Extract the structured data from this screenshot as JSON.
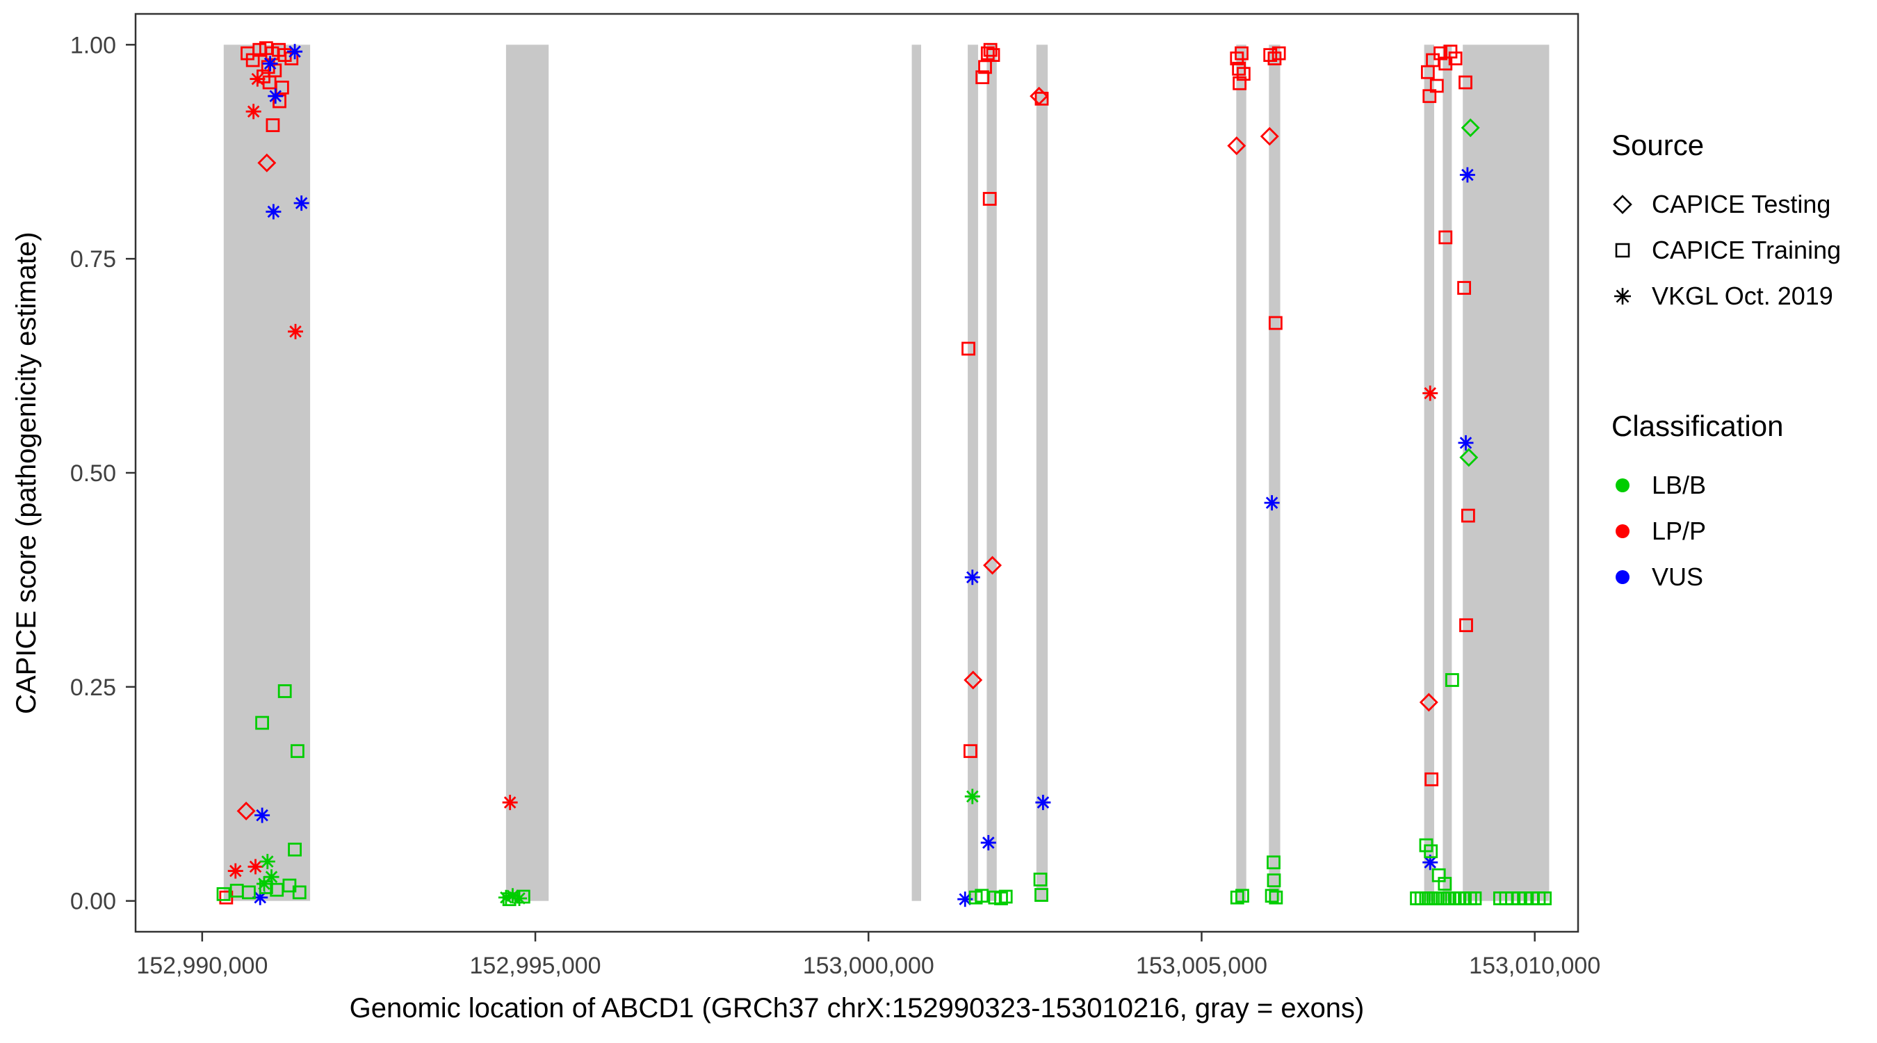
{
  "legend": {
    "source": {
      "title": "Source",
      "items": [
        {
          "label": "CAPICE Testing",
          "shape": "diamond"
        },
        {
          "label": "CAPICE Training",
          "shape": "square"
        },
        {
          "label": "VKGL Oct. 2019",
          "shape": "asterisk"
        }
      ]
    },
    "classification": {
      "title": "Classification",
      "items": [
        {
          "label": "LB/B",
          "color": "#00CD00"
        },
        {
          "label": "LP/P",
          "color": "#FF0000"
        },
        {
          "label": "VUS",
          "color": "#0000FF"
        }
      ]
    }
  },
  "chart_data": {
    "type": "scatter",
    "title": "",
    "xlabel": "Genomic location of ABCD1 (GRCh37 chrX:152990323-153010216, gray = exons)",
    "ylabel": "CAPICE score (pathogenicity estimate)",
    "legend_position": "right",
    "grid": false,
    "exon_color": "#C8C8C8",
    "x_axis": {
      "range": [
        152989000,
        153010650
      ],
      "ticks": [
        {
          "value": 152990000,
          "label": "152,990,000"
        },
        {
          "value": 152995000,
          "label": "152,995,000"
        },
        {
          "value": 153000000,
          "label": "153,000,000"
        },
        {
          "value": 153005000,
          "label": "153,005,000"
        },
        {
          "value": 153010000,
          "label": "153,010,000"
        }
      ]
    },
    "y_axis": {
      "range": [
        0,
        1
      ],
      "ticks": [
        {
          "value": 0,
          "label": "0.00"
        },
        {
          "value": 0.25,
          "label": "0.25"
        },
        {
          "value": 0.5,
          "label": "0.50"
        },
        {
          "value": 0.75,
          "label": "0.75"
        },
        {
          "value": 1,
          "label": "1.00"
        }
      ]
    },
    "exons": [
      [
        152990323,
        152991620
      ],
      [
        152994560,
        152995200
      ],
      [
        153000650,
        153000790
      ],
      [
        153001490,
        153001645
      ],
      [
        153001775,
        153001925
      ],
      [
        153002520,
        153002690
      ],
      [
        153005520,
        153005670
      ],
      [
        153006010,
        153006180
      ],
      [
        153008340,
        153008490
      ],
      [
        153008620,
        153008755
      ],
      [
        153008920,
        153010216
      ]
    ],
    "source_codes": {
      "T": "CAPICE Testing",
      "R": "CAPICE Training",
      "V": "VKGL Oct. 2019"
    },
    "class_codes": {
      "B": "LB/B",
      "P": "LP/P",
      "U": "VUS"
    },
    "colors": {
      "LB/B": "#00CD00",
      "LP/P": "#FF0000",
      "VUS": "#0000FF"
    },
    "shapes": {
      "CAPICE Testing": "diamond",
      "CAPICE Training": "square",
      "VKGL Oct. 2019": "asterisk"
    },
    "points": [
      [
        152990680,
        0.99,
        "R",
        "P"
      ],
      [
        152990760,
        0.982,
        "R",
        "P"
      ],
      [
        152990860,
        0.994,
        "R",
        "P"
      ],
      [
        152990960,
        0.996,
        "R",
        "P"
      ],
      [
        152991050,
        0.99,
        "R",
        "P"
      ],
      [
        152991150,
        0.994,
        "R",
        "P"
      ],
      [
        152991240,
        0.988,
        "R",
        "P"
      ],
      [
        152991340,
        0.984,
        "R",
        "P"
      ],
      [
        152990990,
        0.974,
        "R",
        "P"
      ],
      [
        152991090,
        0.97,
        "R",
        "P"
      ],
      [
        152990920,
        0.963,
        "R",
        "P"
      ],
      [
        152991010,
        0.956,
        "R",
        "P"
      ],
      [
        152991200,
        0.95,
        "R",
        "P"
      ],
      [
        152991160,
        0.934,
        "R",
        "P"
      ],
      [
        152991060,
        0.906,
        "R",
        "P"
      ],
      [
        152990360,
        0.004,
        "R",
        "P"
      ],
      [
        152990830,
        0.96,
        "V",
        "P"
      ],
      [
        152990770,
        0.922,
        "V",
        "P"
      ],
      [
        152991400,
        0.665,
        "V",
        "P"
      ],
      [
        152990500,
        0.035,
        "V",
        "P"
      ],
      [
        152990800,
        0.04,
        "V",
        "P"
      ],
      [
        152990970,
        0.862,
        "T",
        "P"
      ],
      [
        152990660,
        0.105,
        "T",
        "P"
      ],
      [
        152991020,
        0.978,
        "V",
        "U"
      ],
      [
        152991390,
        0.992,
        "V",
        "U"
      ],
      [
        152991100,
        0.94,
        "V",
        "U"
      ],
      [
        152991070,
        0.805,
        "V",
        "U"
      ],
      [
        152991490,
        0.815,
        "V",
        "U"
      ],
      [
        152990900,
        0.1,
        "V",
        "U"
      ],
      [
        152990870,
        0.004,
        "V",
        "U"
      ],
      [
        152991240,
        0.245,
        "R",
        "B"
      ],
      [
        152990900,
        0.208,
        "R",
        "B"
      ],
      [
        152991430,
        0.175,
        "R",
        "B"
      ],
      [
        152991390,
        0.06,
        "R",
        "B"
      ],
      [
        152990320,
        0.008,
        "R",
        "B"
      ],
      [
        152990520,
        0.012,
        "R",
        "B"
      ],
      [
        152990700,
        0.01,
        "R",
        "B"
      ],
      [
        152990960,
        0.016,
        "R",
        "B"
      ],
      [
        152991120,
        0.013,
        "R",
        "B"
      ],
      [
        152991310,
        0.018,
        "R",
        "B"
      ],
      [
        152991460,
        0.01,
        "R",
        "B"
      ],
      [
        152990980,
        0.046,
        "V",
        "B"
      ],
      [
        152991040,
        0.028,
        "V",
        "B"
      ],
      [
        152990930,
        0.02,
        "V",
        "B"
      ],
      [
        152994620,
        0.115,
        "V",
        "P"
      ],
      [
        152994560,
        0.004,
        "V",
        "B"
      ],
      [
        152994660,
        0.006,
        "V",
        "B"
      ],
      [
        152994760,
        0.003,
        "V",
        "B"
      ],
      [
        152994610,
        0.002,
        "R",
        "B"
      ],
      [
        152994820,
        0.005,
        "R",
        "B"
      ],
      [
        153001790,
        0.99,
        "R",
        "P"
      ],
      [
        153001830,
        0.994,
        "R",
        "P"
      ],
      [
        153001870,
        0.988,
        "R",
        "P"
      ],
      [
        153001750,
        0.974,
        "R",
        "P"
      ],
      [
        153001710,
        0.962,
        "R",
        "P"
      ],
      [
        153001820,
        0.82,
        "R",
        "P"
      ],
      [
        153001500,
        0.645,
        "R",
        "P"
      ],
      [
        153001530,
        0.175,
        "R",
        "P"
      ],
      [
        153001860,
        0.392,
        "T",
        "P"
      ],
      [
        153001570,
        0.258,
        "T",
        "P"
      ],
      [
        153001560,
        0.378,
        "V",
        "U"
      ],
      [
        153001800,
        0.068,
        "V",
        "U"
      ],
      [
        153001450,
        0.002,
        "V",
        "U"
      ],
      [
        153001560,
        0.122,
        "V",
        "B"
      ],
      [
        153001610,
        0.004,
        "R",
        "B"
      ],
      [
        153001700,
        0.006,
        "R",
        "B"
      ],
      [
        153001900,
        0.004,
        "R",
        "B"
      ],
      [
        153001990,
        0.003,
        "R",
        "B"
      ],
      [
        153002060,
        0.005,
        "R",
        "B"
      ],
      [
        153002560,
        0.94,
        "T",
        "P"
      ],
      [
        153002600,
        0.937,
        "R",
        "P"
      ],
      [
        153002620,
        0.115,
        "V",
        "U"
      ],
      [
        153002580,
        0.025,
        "R",
        "B"
      ],
      [
        153002595,
        0.007,
        "R",
        "B"
      ],
      [
        153005530,
        0.984,
        "R",
        "P"
      ],
      [
        153005560,
        0.972,
        "R",
        "P"
      ],
      [
        153005600,
        0.99,
        "R",
        "P"
      ],
      [
        153005630,
        0.966,
        "R",
        "P"
      ],
      [
        153005570,
        0.955,
        "R",
        "P"
      ],
      [
        153005525,
        0.882,
        "T",
        "P"
      ],
      [
        153005535,
        0.004,
        "R",
        "B"
      ],
      [
        153005610,
        0.006,
        "R",
        "B"
      ],
      [
        153006030,
        0.988,
        "R",
        "P"
      ],
      [
        153006095,
        0.984,
        "R",
        "P"
      ],
      [
        153006160,
        0.99,
        "R",
        "P"
      ],
      [
        153006110,
        0.675,
        "R",
        "P"
      ],
      [
        153006020,
        0.893,
        "T",
        "P"
      ],
      [
        153006055,
        0.465,
        "V",
        "U"
      ],
      [
        153006080,
        0.045,
        "R",
        "B"
      ],
      [
        153006085,
        0.024,
        "R",
        "B"
      ],
      [
        153006055,
        0.006,
        "R",
        "B"
      ],
      [
        153006115,
        0.004,
        "R",
        "B"
      ],
      [
        153008395,
        0.968,
        "R",
        "P"
      ],
      [
        153008470,
        0.982,
        "R",
        "P"
      ],
      [
        153008530,
        0.952,
        "R",
        "P"
      ],
      [
        153008585,
        0.99,
        "R",
        "P"
      ],
      [
        153008660,
        0.978,
        "R",
        "P"
      ],
      [
        153008735,
        0.992,
        "R",
        "P"
      ],
      [
        153008420,
        0.94,
        "R",
        "P"
      ],
      [
        153008810,
        0.984,
        "R",
        "P"
      ],
      [
        153008960,
        0.956,
        "R",
        "P"
      ],
      [
        153008660,
        0.775,
        "R",
        "P"
      ],
      [
        153008940,
        0.716,
        "R",
        "P"
      ],
      [
        153009000,
        0.45,
        "R",
        "P"
      ],
      [
        153008970,
        0.322,
        "R",
        "P"
      ],
      [
        153008450,
        0.142,
        "R",
        "P"
      ],
      [
        153008410,
        0.232,
        "T",
        "P"
      ],
      [
        153008430,
        0.593,
        "V",
        "P"
      ],
      [
        153009035,
        0.903,
        "T",
        "B"
      ],
      [
        153009010,
        0.518,
        "T",
        "B"
      ],
      [
        153008990,
        0.848,
        "V",
        "U"
      ],
      [
        153008965,
        0.535,
        "V",
        "U"
      ],
      [
        153008430,
        0.045,
        "V",
        "U"
      ],
      [
        153008760,
        0.258,
        "R",
        "B"
      ],
      [
        153008370,
        0.065,
        "R",
        "B"
      ],
      [
        153008440,
        0.058,
        "R",
        "B"
      ],
      [
        153008560,
        0.03,
        "R",
        "B"
      ],
      [
        153008650,
        0.02,
        "R",
        "B"
      ],
      [
        153008230,
        0.003,
        "R",
        "B"
      ],
      [
        153008300,
        0.003,
        "R",
        "B"
      ],
      [
        153008370,
        0.003,
        "R",
        "B"
      ],
      [
        153008440,
        0.003,
        "R",
        "B"
      ],
      [
        153008510,
        0.003,
        "R",
        "B"
      ],
      [
        153008580,
        0.003,
        "R",
        "B"
      ],
      [
        153008650,
        0.003,
        "R",
        "B"
      ],
      [
        153008720,
        0.003,
        "R",
        "B"
      ],
      [
        153008800,
        0.003,
        "R",
        "B"
      ],
      [
        153008870,
        0.003,
        "R",
        "B"
      ],
      [
        153008950,
        0.003,
        "R",
        "B"
      ],
      [
        153009030,
        0.003,
        "R",
        "B"
      ],
      [
        153009100,
        0.003,
        "R",
        "B"
      ],
      [
        153009480,
        0.003,
        "R",
        "B"
      ],
      [
        153009570,
        0.003,
        "R",
        "B"
      ],
      [
        153009660,
        0.003,
        "R",
        "B"
      ],
      [
        153009760,
        0.003,
        "R",
        "B"
      ],
      [
        153009860,
        0.003,
        "R",
        "B"
      ],
      [
        153009960,
        0.003,
        "R",
        "B"
      ],
      [
        153010060,
        0.003,
        "R",
        "B"
      ],
      [
        153010150,
        0.003,
        "R",
        "B"
      ]
    ]
  }
}
